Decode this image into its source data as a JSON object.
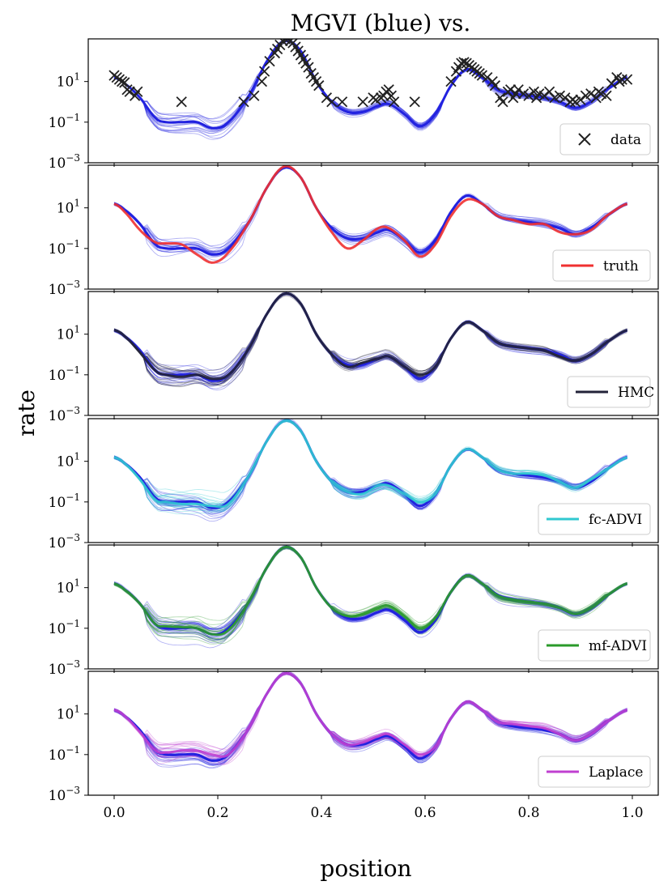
{
  "figure": {
    "title": "MGVI (blue) vs.",
    "xlabel": "position",
    "ylabel": "rate",
    "x_tick_labels": [
      "0.0",
      "0.2",
      "0.4",
      "0.6",
      "0.8",
      "1.0"
    ],
    "y_tick_labels": [
      {
        "base": "10",
        "exp": "1"
      },
      {
        "base": "10",
        "exp": "−1"
      },
      {
        "base": "10",
        "exp": "−3"
      }
    ],
    "colors": {
      "mgvi": "#2222e0",
      "data": "#222222",
      "truth": "#f03030",
      "hmc": "#222238",
      "fc_advi": "#30c8d0",
      "mf_advi": "#2a9a2a",
      "laplace": "#c040d0"
    }
  },
  "chart_data": {
    "type": "line",
    "x_range": [
      -0.05,
      1.05
    ],
    "y_scale": "log",
    "y_range_exponent": [
      -3,
      3.1
    ],
    "x_ticks": [
      0.0,
      0.2,
      0.4,
      0.6,
      0.8,
      1.0
    ],
    "y_tick_exponents": [
      1,
      -1,
      -3
    ],
    "mgvi_mean_log10": [
      [
        0.0,
        1.2
      ],
      [
        0.02,
        0.9
      ],
      [
        0.05,
        0.2
      ],
      [
        0.08,
        -0.8
      ],
      [
        0.1,
        -1.0
      ],
      [
        0.13,
        -1.0
      ],
      [
        0.16,
        -1.0
      ],
      [
        0.19,
        -1.3
      ],
      [
        0.22,
        -1.0
      ],
      [
        0.26,
        0.3
      ],
      [
        0.3,
        2.2
      ],
      [
        0.33,
        3.0
      ],
      [
        0.36,
        2.5
      ],
      [
        0.39,
        1.0
      ],
      [
        0.42,
        0.0
      ],
      [
        0.45,
        -0.5
      ],
      [
        0.48,
        -0.5
      ],
      [
        0.51,
        -0.2
      ],
      [
        0.53,
        -0.1
      ],
      [
        0.56,
        -0.6
      ],
      [
        0.59,
        -1.2
      ],
      [
        0.62,
        -0.6
      ],
      [
        0.65,
        0.8
      ],
      [
        0.68,
        1.6
      ],
      [
        0.71,
        1.2
      ],
      [
        0.74,
        0.6
      ],
      [
        0.77,
        0.4
      ],
      [
        0.8,
        0.3
      ],
      [
        0.83,
        0.2
      ],
      [
        0.86,
        0.0
      ],
      [
        0.89,
        -0.3
      ],
      [
        0.92,
        0.0
      ],
      [
        0.95,
        0.6
      ],
      [
        0.99,
        1.2
      ]
    ],
    "data_points": [
      [
        0.0,
        1.3
      ],
      [
        0.005,
        1.2
      ],
      [
        0.01,
        1.1
      ],
      [
        0.015,
        1.0
      ],
      [
        0.02,
        0.95
      ],
      [
        0.025,
        0.6
      ],
      [
        0.03,
        0.5
      ],
      [
        0.04,
        0.3
      ],
      [
        0.045,
        0.5
      ],
      [
        0.13,
        0.0
      ],
      [
        0.25,
        0.0
      ],
      [
        0.27,
        0.3
      ],
      [
        0.285,
        1.0
      ],
      [
        0.29,
        1.5
      ],
      [
        0.3,
        2.0
      ],
      [
        0.31,
        2.4
      ],
      [
        0.315,
        2.6
      ],
      [
        0.32,
        2.8
      ],
      [
        0.325,
        3.0
      ],
      [
        0.33,
        3.1
      ],
      [
        0.335,
        3.1
      ],
      [
        0.34,
        3.0
      ],
      [
        0.345,
        2.9
      ],
      [
        0.35,
        2.7
      ],
      [
        0.355,
        2.5
      ],
      [
        0.36,
        2.3
      ],
      [
        0.365,
        2.1
      ],
      [
        0.37,
        1.9
      ],
      [
        0.375,
        1.7
      ],
      [
        0.38,
        1.4
      ],
      [
        0.385,
        1.2
      ],
      [
        0.39,
        1.0
      ],
      [
        0.395,
        0.8
      ],
      [
        0.41,
        0.2
      ],
      [
        0.42,
        0.0
      ],
      [
        0.44,
        0.0
      ],
      [
        0.48,
        0.0
      ],
      [
        0.5,
        0.2
      ],
      [
        0.505,
        0.1
      ],
      [
        0.515,
        0.2
      ],
      [
        0.52,
        0.3
      ],
      [
        0.525,
        0.5
      ],
      [
        0.53,
        0.6
      ],
      [
        0.535,
        0.3
      ],
      [
        0.54,
        0.0
      ],
      [
        0.58,
        0.0
      ],
      [
        0.65,
        1.0
      ],
      [
        0.66,
        1.5
      ],
      [
        0.665,
        1.7
      ],
      [
        0.67,
        1.9
      ],
      [
        0.675,
        1.95
      ],
      [
        0.68,
        1.9
      ],
      [
        0.685,
        1.8
      ],
      [
        0.69,
        1.7
      ],
      [
        0.695,
        1.6
      ],
      [
        0.7,
        1.5
      ],
      [
        0.705,
        1.4
      ],
      [
        0.71,
        1.3
      ],
      [
        0.72,
        1.2
      ],
      [
        0.73,
        1.0
      ],
      [
        0.735,
        0.8
      ],
      [
        0.745,
        0.2
      ],
      [
        0.75,
        0.0
      ],
      [
        0.76,
        0.5
      ],
      [
        0.765,
        0.6
      ],
      [
        0.77,
        0.2
      ],
      [
        0.775,
        0.4
      ],
      [
        0.78,
        0.6
      ],
      [
        0.79,
        0.4
      ],
      [
        0.8,
        0.3
      ],
      [
        0.81,
        0.5
      ],
      [
        0.815,
        0.2
      ],
      [
        0.82,
        0.4
      ],
      [
        0.83,
        0.3
      ],
      [
        0.84,
        0.5
      ],
      [
        0.85,
        0.2
      ],
      [
        0.86,
        0.3
      ],
      [
        0.87,
        0.2
      ],
      [
        0.88,
        0.0
      ],
      [
        0.885,
        0.1
      ],
      [
        0.89,
        0.0
      ],
      [
        0.9,
        0.1
      ],
      [
        0.91,
        0.3
      ],
      [
        0.92,
        0.4
      ],
      [
        0.93,
        0.2
      ],
      [
        0.935,
        0.5
      ],
      [
        0.94,
        0.4
      ],
      [
        0.95,
        0.3
      ],
      [
        0.96,
        0.9
      ],
      [
        0.97,
        1.2
      ],
      [
        0.975,
        1.0
      ],
      [
        0.98,
        1.1
      ],
      [
        0.99,
        1.1
      ]
    ],
    "panels": [
      {
        "legend": "data",
        "legend_style": "marker",
        "color_key": "data",
        "curve": null
      },
      {
        "legend": "truth",
        "legend_style": "line",
        "color_key": "truth",
        "curve": [
          [
            0.0,
            1.2
          ],
          [
            0.02,
            0.8
          ],
          [
            0.05,
            -0.1
          ],
          [
            0.08,
            -0.7
          ],
          [
            0.1,
            -0.75
          ],
          [
            0.13,
            -0.8
          ],
          [
            0.16,
            -1.3
          ],
          [
            0.19,
            -1.7
          ],
          [
            0.22,
            -1.2
          ],
          [
            0.26,
            0.3
          ],
          [
            0.3,
            2.2
          ],
          [
            0.33,
            3.05
          ],
          [
            0.36,
            2.5
          ],
          [
            0.39,
            1.0
          ],
          [
            0.42,
            -0.2
          ],
          [
            0.45,
            -1.0
          ],
          [
            0.48,
            -0.6
          ],
          [
            0.51,
            0.0
          ],
          [
            0.53,
            0.0
          ],
          [
            0.56,
            -0.6
          ],
          [
            0.59,
            -1.4
          ],
          [
            0.62,
            -0.8
          ],
          [
            0.65,
            0.6
          ],
          [
            0.68,
            1.4
          ],
          [
            0.71,
            1.2
          ],
          [
            0.74,
            0.6
          ],
          [
            0.77,
            0.4
          ],
          [
            0.8,
            0.2
          ],
          [
            0.83,
            0.2
          ],
          [
            0.86,
            -0.2
          ],
          [
            0.89,
            -0.3
          ],
          [
            0.92,
            -0.1
          ],
          [
            0.95,
            0.6
          ],
          [
            0.99,
            1.2
          ]
        ]
      },
      {
        "legend": "HMC",
        "legend_style": "line",
        "color_key": "hmc",
        "curve": [
          [
            0.0,
            1.2
          ],
          [
            0.02,
            0.9
          ],
          [
            0.05,
            0.1
          ],
          [
            0.08,
            -0.8
          ],
          [
            0.1,
            -1.0
          ],
          [
            0.13,
            -1.1
          ],
          [
            0.16,
            -1.0
          ],
          [
            0.19,
            -1.2
          ],
          [
            0.22,
            -1.0
          ],
          [
            0.26,
            0.3
          ],
          [
            0.3,
            2.2
          ],
          [
            0.33,
            3.0
          ],
          [
            0.36,
            2.5
          ],
          [
            0.39,
            1.0
          ],
          [
            0.42,
            0.0
          ],
          [
            0.45,
            -0.6
          ],
          [
            0.48,
            -0.4
          ],
          [
            0.51,
            -0.2
          ],
          [
            0.53,
            -0.1
          ],
          [
            0.56,
            -0.6
          ],
          [
            0.59,
            -1.0
          ],
          [
            0.62,
            -0.6
          ],
          [
            0.65,
            0.8
          ],
          [
            0.68,
            1.6
          ],
          [
            0.71,
            1.2
          ],
          [
            0.74,
            0.6
          ],
          [
            0.77,
            0.4
          ],
          [
            0.8,
            0.3
          ],
          [
            0.83,
            0.2
          ],
          [
            0.86,
            -0.1
          ],
          [
            0.89,
            -0.3
          ],
          [
            0.92,
            0.0
          ],
          [
            0.95,
            0.6
          ],
          [
            0.99,
            1.2
          ]
        ]
      },
      {
        "legend": "fc-ADVI",
        "legend_style": "line",
        "color_key": "fc_advi",
        "curve": [
          [
            0.0,
            1.2
          ],
          [
            0.02,
            0.9
          ],
          [
            0.05,
            0.1
          ],
          [
            0.08,
            -0.9
          ],
          [
            0.1,
            -1.0
          ],
          [
            0.13,
            -1.1
          ],
          [
            0.16,
            -1.1
          ],
          [
            0.19,
            -1.2
          ],
          [
            0.22,
            -1.1
          ],
          [
            0.26,
            0.3
          ],
          [
            0.3,
            2.2
          ],
          [
            0.33,
            3.0
          ],
          [
            0.36,
            2.5
          ],
          [
            0.39,
            1.0
          ],
          [
            0.42,
            0.0
          ],
          [
            0.45,
            -0.5
          ],
          [
            0.48,
            -0.6
          ],
          [
            0.51,
            -0.2
          ],
          [
            0.53,
            -0.2
          ],
          [
            0.56,
            -0.6
          ],
          [
            0.59,
            -1.0
          ],
          [
            0.62,
            -0.6
          ],
          [
            0.65,
            0.8
          ],
          [
            0.68,
            1.6
          ],
          [
            0.71,
            1.2
          ],
          [
            0.74,
            0.6
          ],
          [
            0.77,
            0.4
          ],
          [
            0.8,
            0.4
          ],
          [
            0.83,
            0.3
          ],
          [
            0.86,
            0.0
          ],
          [
            0.89,
            -0.3
          ],
          [
            0.92,
            0.1
          ],
          [
            0.95,
            0.6
          ],
          [
            0.99,
            1.2
          ]
        ]
      },
      {
        "legend": "mf-ADVI",
        "legend_style": "line",
        "color_key": "mf_advi",
        "curve": [
          [
            0.0,
            1.2
          ],
          [
            0.02,
            0.9
          ],
          [
            0.05,
            0.2
          ],
          [
            0.08,
            -0.8
          ],
          [
            0.1,
            -0.9
          ],
          [
            0.13,
            -0.95
          ],
          [
            0.16,
            -1.0
          ],
          [
            0.19,
            -1.3
          ],
          [
            0.22,
            -1.1
          ],
          [
            0.26,
            0.3
          ],
          [
            0.3,
            2.2
          ],
          [
            0.33,
            3.0
          ],
          [
            0.36,
            2.5
          ],
          [
            0.39,
            1.0
          ],
          [
            0.42,
            0.0
          ],
          [
            0.45,
            -0.4
          ],
          [
            0.48,
            -0.3
          ],
          [
            0.51,
            0.0
          ],
          [
            0.53,
            0.1
          ],
          [
            0.56,
            -0.4
          ],
          [
            0.59,
            -1.0
          ],
          [
            0.62,
            -0.5
          ],
          [
            0.65,
            0.8
          ],
          [
            0.68,
            1.6
          ],
          [
            0.71,
            1.2
          ],
          [
            0.74,
            0.6
          ],
          [
            0.77,
            0.4
          ],
          [
            0.8,
            0.3
          ],
          [
            0.83,
            0.2
          ],
          [
            0.86,
            0.0
          ],
          [
            0.89,
            -0.3
          ],
          [
            0.92,
            0.0
          ],
          [
            0.95,
            0.6
          ],
          [
            0.99,
            1.2
          ]
        ]
      },
      {
        "legend": "Laplace",
        "legend_style": "line",
        "color_key": "laplace",
        "curve": [
          [
            0.0,
            1.2
          ],
          [
            0.02,
            0.9
          ],
          [
            0.05,
            0.1
          ],
          [
            0.08,
            -0.8
          ],
          [
            0.1,
            -0.9
          ],
          [
            0.13,
            -0.8
          ],
          [
            0.16,
            -0.8
          ],
          [
            0.19,
            -1.0
          ],
          [
            0.22,
            -1.0
          ],
          [
            0.26,
            0.3
          ],
          [
            0.3,
            2.2
          ],
          [
            0.33,
            3.0
          ],
          [
            0.36,
            2.5
          ],
          [
            0.39,
            1.0
          ],
          [
            0.42,
            0.0
          ],
          [
            0.45,
            -0.5
          ],
          [
            0.48,
            -0.4
          ],
          [
            0.51,
            -0.1
          ],
          [
            0.53,
            0.0
          ],
          [
            0.56,
            -0.5
          ],
          [
            0.59,
            -1.0
          ],
          [
            0.62,
            -0.6
          ],
          [
            0.65,
            0.8
          ],
          [
            0.68,
            1.6
          ],
          [
            0.71,
            1.2
          ],
          [
            0.74,
            0.6
          ],
          [
            0.77,
            0.5
          ],
          [
            0.8,
            0.4
          ],
          [
            0.83,
            0.3
          ],
          [
            0.86,
            0.0
          ],
          [
            0.89,
            -0.3
          ],
          [
            0.92,
            0.0
          ],
          [
            0.95,
            0.6
          ],
          [
            0.99,
            1.2
          ]
        ]
      }
    ]
  }
}
